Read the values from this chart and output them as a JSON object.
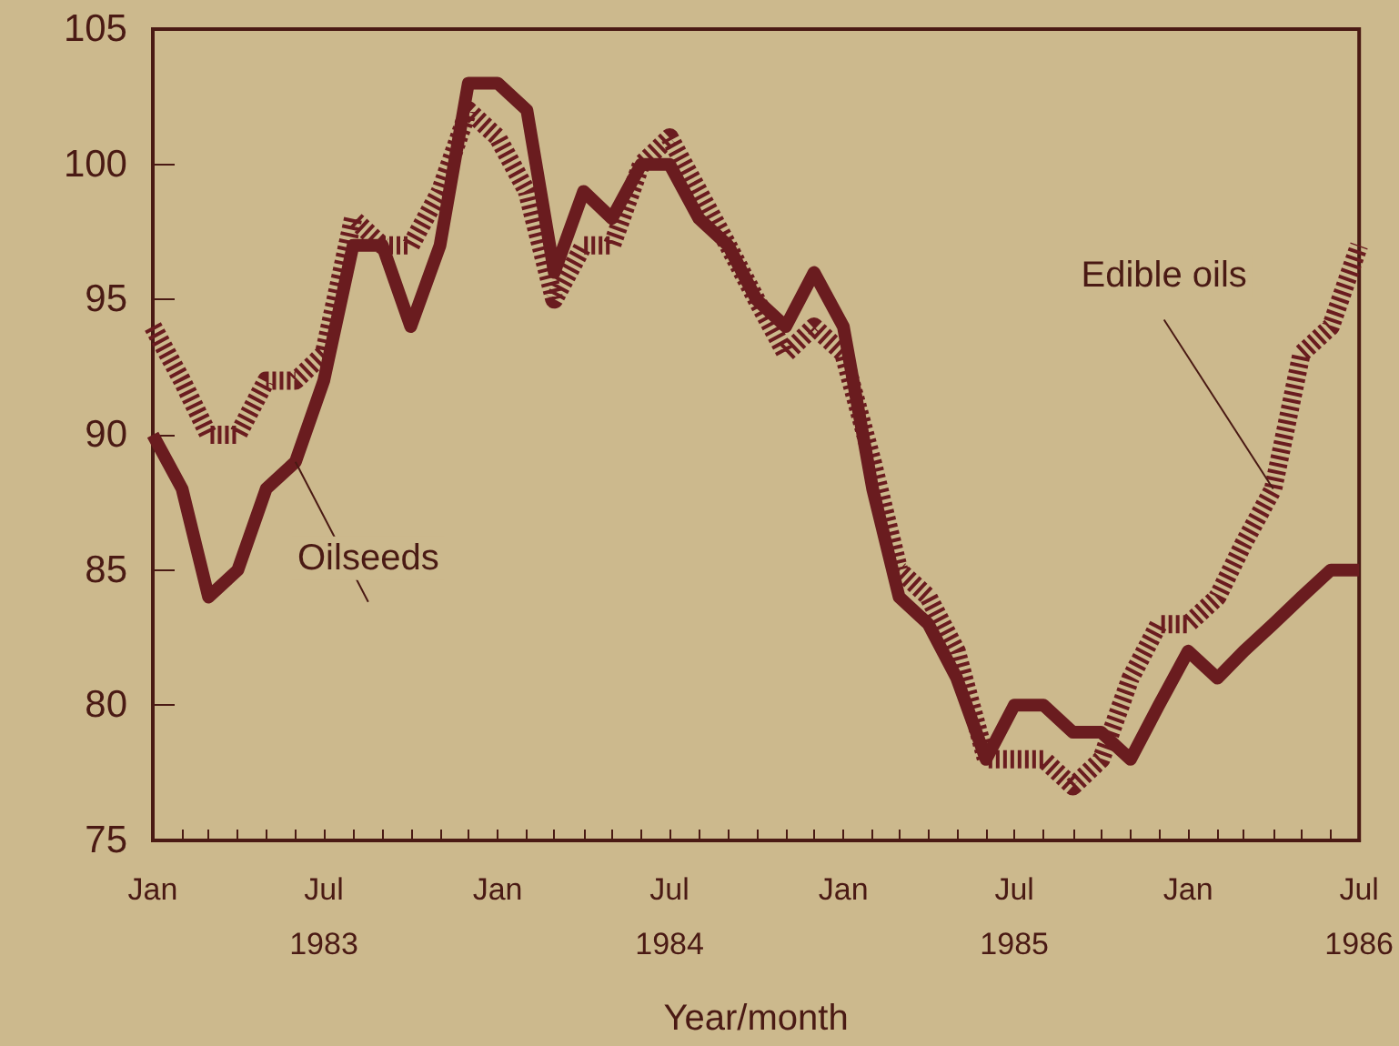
{
  "chart_data": {
    "type": "line",
    "xlabel": "Year/month",
    "x": [
      "1983-01",
      "1983-02",
      "1983-03",
      "1983-04",
      "1983-05",
      "1983-06",
      "1983-07",
      "1983-08",
      "1983-09",
      "1983-10",
      "1983-11",
      "1983-12",
      "1984-01",
      "1984-02",
      "1984-03",
      "1984-04",
      "1984-05",
      "1984-06",
      "1984-07",
      "1984-08",
      "1984-09",
      "1984-10",
      "1984-11",
      "1984-12",
      "1985-01",
      "1985-02",
      "1985-03",
      "1985-04",
      "1985-05",
      "1985-06",
      "1985-07",
      "1985-08",
      "1985-09",
      "1985-10",
      "1985-11",
      "1985-12",
      "1986-01",
      "1986-02",
      "1986-03",
      "1986-04",
      "1986-05",
      "1986-06",
      "1986-07"
    ],
    "series": [
      {
        "name": "Oilseeds",
        "color": "#6a1c1f",
        "line_style": "solid",
        "values": [
          90,
          88,
          84,
          85,
          88,
          89,
          92,
          97,
          97,
          94,
          97,
          103,
          103,
          102,
          96,
          99,
          98,
          100,
          100,
          98,
          97,
          95,
          94,
          96,
          94,
          88,
          84,
          83,
          81,
          78,
          80,
          80,
          79,
          79,
          78,
          80,
          82,
          81,
          82,
          83,
          84,
          85,
          85
        ]
      },
      {
        "name": "Edible oils",
        "color": "#6a1c1f",
        "line_style": "dotted",
        "values": [
          94,
          92,
          90,
          90,
          92,
          92,
          93,
          98,
          97,
          97,
          99,
          102,
          101,
          99,
          95,
          97,
          97,
          100,
          101,
          99,
          97,
          95,
          93,
          94,
          93,
          89,
          85,
          84,
          82,
          78,
          78,
          78,
          77,
          78,
          81,
          83,
          83,
          84,
          86,
          88,
          93,
          94,
          97
        ]
      }
    ],
    "xlim": [
      "1983-01",
      "1986-07"
    ],
    "xticks": [
      {
        "value": "1983-01",
        "label": "Jan"
      },
      {
        "value": "1983-02",
        "label": null
      },
      {
        "value": "1983-03",
        "label": null
      },
      {
        "value": "1983-04",
        "label": null
      },
      {
        "value": "1983-05",
        "label": null
      },
      {
        "value": "1983-06",
        "label": null
      },
      {
        "value": "1983-07",
        "label": "Jul\n1983"
      },
      {
        "value": "1983-08",
        "label": null
      },
      {
        "value": "1983-09",
        "label": null
      },
      {
        "value": "1983-10",
        "label": null
      },
      {
        "value": "1983-11",
        "label": null
      },
      {
        "value": "1983-12",
        "label": null
      },
      {
        "value": "1984-01",
        "label": "Jan"
      },
      {
        "value": "1984-02",
        "label": null
      },
      {
        "value": "1984-03",
        "label": null
      },
      {
        "value": "1984-04",
        "label": null
      },
      {
        "value": "1984-05",
        "label": null
      },
      {
        "value": "1984-06",
        "label": null
      },
      {
        "value": "1984-07",
        "label": "Jul\n1984"
      },
      {
        "value": "1984-08",
        "label": null
      },
      {
        "value": "1984-09",
        "label": null
      },
      {
        "value": "1984-10",
        "label": null
      },
      {
        "value": "1984-11",
        "label": null
      },
      {
        "value": "1984-12",
        "label": null
      },
      {
        "value": "1985-01",
        "label": "Jan"
      },
      {
        "value": "1985-02",
        "label": null
      },
      {
        "value": "1985-03",
        "label": null
      },
      {
        "value": "1985-04",
        "label": null
      },
      {
        "value": "1985-05",
        "label": null
      },
      {
        "value": "1985-06",
        "label": null
      },
      {
        "value": "1985-07",
        "label": "Jul\n1985"
      },
      {
        "value": "1985-08",
        "label": null
      },
      {
        "value": "1985-09",
        "label": null
      },
      {
        "value": "1985-10",
        "label": null
      },
      {
        "value": "1985-11",
        "label": null
      },
      {
        "value": "1985-12",
        "label": null
      },
      {
        "value": "1986-01",
        "label": "Jan"
      },
      {
        "value": "1986-02",
        "label": null
      },
      {
        "value": "1986-03",
        "label": null
      },
      {
        "value": "1986-04",
        "label": null
      },
      {
        "value": "1986-05",
        "label": null
      },
      {
        "value": "1986-06",
        "label": null
      },
      {
        "value": "1986-07",
        "label": "Jul\n1986"
      }
    ],
    "ylim": [
      75,
      105
    ],
    "yticks": [
      75,
      80,
      85,
      90,
      95,
      100,
      105
    ],
    "legend": false,
    "marker": "none"
  }
}
